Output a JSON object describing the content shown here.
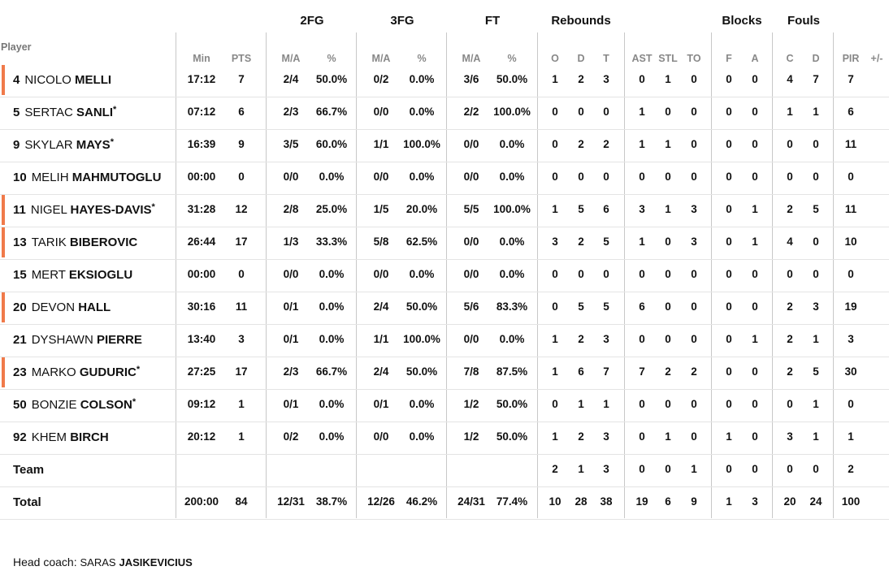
{
  "header": {
    "player_label": "Player",
    "groups": [
      "2FG",
      "3FG",
      "FT",
      "Rebounds",
      "Blocks",
      "Fouls"
    ],
    "columns": [
      "Min",
      "PTS",
      "M/A",
      "%",
      "M/A",
      "%",
      "M/A",
      "%",
      "O",
      "D",
      "T",
      "AST",
      "STL",
      "TO",
      "F",
      "A",
      "C",
      "D",
      "PIR",
      "+/-"
    ]
  },
  "players": [
    {
      "num": "4",
      "first": "NICOLO",
      "last": "MELLI",
      "star": "",
      "highlight": true,
      "stats": [
        "17:12",
        "7",
        "2/4",
        "50.0%",
        "0/2",
        "0.0%",
        "3/6",
        "50.0%",
        "1",
        "2",
        "3",
        "0",
        "1",
        "0",
        "0",
        "0",
        "4",
        "7",
        "7",
        ""
      ]
    },
    {
      "num": "5",
      "first": "SERTAC",
      "last": "SANLI",
      "star": "*",
      "highlight": false,
      "stats": [
        "07:12",
        "6",
        "2/3",
        "66.7%",
        "0/0",
        "0.0%",
        "2/2",
        "100.0%",
        "0",
        "0",
        "0",
        "1",
        "0",
        "0",
        "0",
        "0",
        "1",
        "1",
        "6",
        ""
      ]
    },
    {
      "num": "9",
      "first": "SKYLAR",
      "last": "MAYS",
      "star": "*",
      "highlight": false,
      "stats": [
        "16:39",
        "9",
        "3/5",
        "60.0%",
        "1/1",
        "100.0%",
        "0/0",
        "0.0%",
        "0",
        "2",
        "2",
        "1",
        "1",
        "0",
        "0",
        "0",
        "0",
        "0",
        "11",
        ""
      ]
    },
    {
      "num": "10",
      "first": "MELIH",
      "last": "MAHMUTOGLU",
      "star": "",
      "highlight": false,
      "stats": [
        "00:00",
        "0",
        "0/0",
        "0.0%",
        "0/0",
        "0.0%",
        "0/0",
        "0.0%",
        "0",
        "0",
        "0",
        "0",
        "0",
        "0",
        "0",
        "0",
        "0",
        "0",
        "0",
        ""
      ]
    },
    {
      "num": "11",
      "first": "NIGEL",
      "last": "HAYES-DAVIS",
      "star": "*",
      "highlight": true,
      "stats": [
        "31:28",
        "12",
        "2/8",
        "25.0%",
        "1/5",
        "20.0%",
        "5/5",
        "100.0%",
        "1",
        "5",
        "6",
        "3",
        "1",
        "3",
        "0",
        "1",
        "2",
        "5",
        "11",
        ""
      ]
    },
    {
      "num": "13",
      "first": "TARIK",
      "last": "BIBEROVIC",
      "star": "",
      "highlight": true,
      "stats": [
        "26:44",
        "17",
        "1/3",
        "33.3%",
        "5/8",
        "62.5%",
        "0/0",
        "0.0%",
        "3",
        "2",
        "5",
        "1",
        "0",
        "3",
        "0",
        "1",
        "4",
        "0",
        "10",
        ""
      ]
    },
    {
      "num": "15",
      "first": "MERT",
      "last": "EKSIOGLU",
      "star": "",
      "highlight": false,
      "stats": [
        "00:00",
        "0",
        "0/0",
        "0.0%",
        "0/0",
        "0.0%",
        "0/0",
        "0.0%",
        "0",
        "0",
        "0",
        "0",
        "0",
        "0",
        "0",
        "0",
        "0",
        "0",
        "0",
        ""
      ]
    },
    {
      "num": "20",
      "first": "DEVON",
      "last": "HALL",
      "star": "",
      "highlight": true,
      "stats": [
        "30:16",
        "11",
        "0/1",
        "0.0%",
        "2/4",
        "50.0%",
        "5/6",
        "83.3%",
        "0",
        "5",
        "5",
        "6",
        "0",
        "0",
        "0",
        "0",
        "2",
        "3",
        "19",
        ""
      ]
    },
    {
      "num": "21",
      "first": "DYSHAWN",
      "last": "PIERRE",
      "star": "",
      "highlight": false,
      "stats": [
        "13:40",
        "3",
        "0/1",
        "0.0%",
        "1/1",
        "100.0%",
        "0/0",
        "0.0%",
        "1",
        "2",
        "3",
        "0",
        "0",
        "0",
        "0",
        "1",
        "2",
        "1",
        "3",
        ""
      ]
    },
    {
      "num": "23",
      "first": "MARKO",
      "last": "GUDURIC",
      "star": "*",
      "highlight": true,
      "stats": [
        "27:25",
        "17",
        "2/3",
        "66.7%",
        "2/4",
        "50.0%",
        "7/8",
        "87.5%",
        "1",
        "6",
        "7",
        "7",
        "2",
        "2",
        "0",
        "0",
        "2",
        "5",
        "30",
        ""
      ]
    },
    {
      "num": "50",
      "first": "BONZIE",
      "last": "COLSON",
      "star": "*",
      "highlight": false,
      "stats": [
        "09:12",
        "1",
        "0/1",
        "0.0%",
        "0/1",
        "0.0%",
        "1/2",
        "50.0%",
        "0",
        "1",
        "1",
        "0",
        "0",
        "0",
        "0",
        "0",
        "0",
        "1",
        "0",
        ""
      ]
    },
    {
      "num": "92",
      "first": "KHEM",
      "last": "BIRCH",
      "star": "",
      "highlight": false,
      "stats": [
        "20:12",
        "1",
        "0/2",
        "0.0%",
        "0/0",
        "0.0%",
        "1/2",
        "50.0%",
        "1",
        "2",
        "3",
        "0",
        "1",
        "0",
        "1",
        "0",
        "3",
        "1",
        "1",
        ""
      ]
    }
  ],
  "team_row": {
    "label": "Team",
    "stats": [
      "",
      "",
      "",
      "",
      "",
      "",
      "",
      "",
      "2",
      "1",
      "3",
      "0",
      "0",
      "1",
      "0",
      "0",
      "0",
      "0",
      "2",
      ""
    ]
  },
  "total_row": {
    "label": "Total",
    "stats": [
      "200:00",
      "84",
      "12/31",
      "38.7%",
      "12/26",
      "46.2%",
      "24/31",
      "77.4%",
      "10",
      "28",
      "38",
      "19",
      "6",
      "9",
      "1",
      "3",
      "20",
      "24",
      "100",
      ""
    ]
  },
  "coach": {
    "label": "Head coach:",
    "first": "SARAS",
    "last": "JASIKEVICIUS"
  },
  "colors": {
    "highlight": "#f07a4a",
    "divider": "#c8c8c8"
  }
}
